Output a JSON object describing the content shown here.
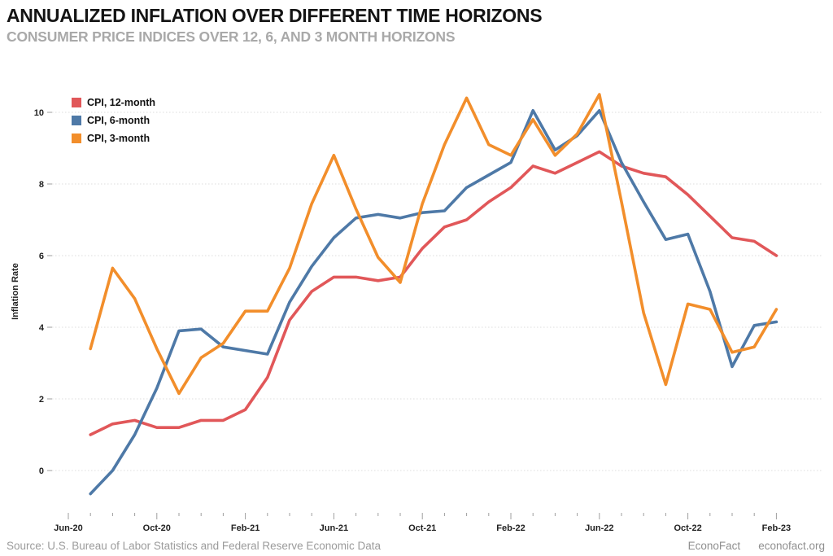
{
  "header": {
    "title": "ANNUALIZED INFLATION OVER DIFFERENT TIME HORIZONS",
    "subtitle": "CONSUMER PRICE INDICES OVER 12, 6, AND 3 MONTH HORIZONS"
  },
  "footer": {
    "source": "Source: U.S. Bureau of Labor Statistics and Federal Reserve Economic Data",
    "brand": "EconoFact",
    "site": "econofact.org"
  },
  "chart_data": {
    "type": "line",
    "title": "ANNUALIZED INFLATION OVER DIFFERENT TIME HORIZONS",
    "subtitle": "CONSUMER PRICE INDICES OVER 12, 6, AND 3 MONTH HORIZONS",
    "xlabel": "",
    "ylabel": "Inflation Rate",
    "months": [
      "Jul-20",
      "Aug-20",
      "Sep-20",
      "Oct-20",
      "Nov-20",
      "Dec-20",
      "Jan-21",
      "Feb-21",
      "Mar-21",
      "Apr-21",
      "May-21",
      "Jun-21",
      "Jul-21",
      "Aug-21",
      "Sep-21",
      "Oct-21",
      "Nov-21",
      "Dec-21",
      "Jan-22",
      "Feb-22",
      "Mar-22",
      "Apr-22",
      "May-22",
      "Jun-22",
      "Jul-22",
      "Aug-22",
      "Sep-22",
      "Oct-22",
      "Nov-22",
      "Dec-22",
      "Jan-23",
      "Feb-23"
    ],
    "x_tick_labels": [
      "Jun-20",
      "Oct-20",
      "Feb-21",
      "Jun-21",
      "Oct-21",
      "Feb-22",
      "Jun-22",
      "Oct-22",
      "Feb-23"
    ],
    "x_tick_every_months": 4,
    "yticks": [
      0,
      2,
      4,
      6,
      8,
      10
    ],
    "ylim": [
      -1.25,
      11.2
    ],
    "grid": "dotted horizontal",
    "legend_position": "top-left inside",
    "series": [
      {
        "name": "CPI, 12-month",
        "color": "#e15759",
        "values": [
          1.0,
          1.3,
          1.4,
          1.2,
          1.2,
          1.4,
          1.4,
          1.7,
          2.6,
          4.2,
          5.0,
          5.4,
          5.4,
          5.3,
          5.4,
          6.2,
          6.8,
          7.0,
          7.5,
          7.9,
          8.5,
          8.3,
          8.6,
          8.9,
          8.5,
          8.3,
          8.2,
          7.7,
          7.1,
          6.5,
          6.4,
          6.0
        ]
      },
      {
        "name": "CPI, 6-month",
        "color": "#4e79a7",
        "values": [
          -0.65,
          0.0,
          1.0,
          2.3,
          3.9,
          3.95,
          3.45,
          3.35,
          3.25,
          4.7,
          5.7,
          6.5,
          7.05,
          7.15,
          7.05,
          7.2,
          7.25,
          7.9,
          8.25,
          8.6,
          10.05,
          8.95,
          9.35,
          10.05,
          8.6,
          7.5,
          6.45,
          6.6,
          5.0,
          2.9,
          4.05,
          4.15
        ]
      },
      {
        "name": "CPI, 3-month",
        "color": "#f28e2b",
        "values": [
          3.4,
          5.65,
          4.8,
          3.4,
          2.15,
          3.15,
          3.55,
          4.45,
          4.45,
          5.65,
          7.45,
          8.8,
          7.3,
          5.95,
          5.25,
          7.45,
          9.1,
          10.4,
          9.1,
          8.8,
          9.8,
          8.8,
          9.4,
          10.5,
          7.5,
          4.4,
          2.4,
          4.65,
          4.5,
          3.3,
          3.45,
          4.5
        ]
      }
    ]
  }
}
